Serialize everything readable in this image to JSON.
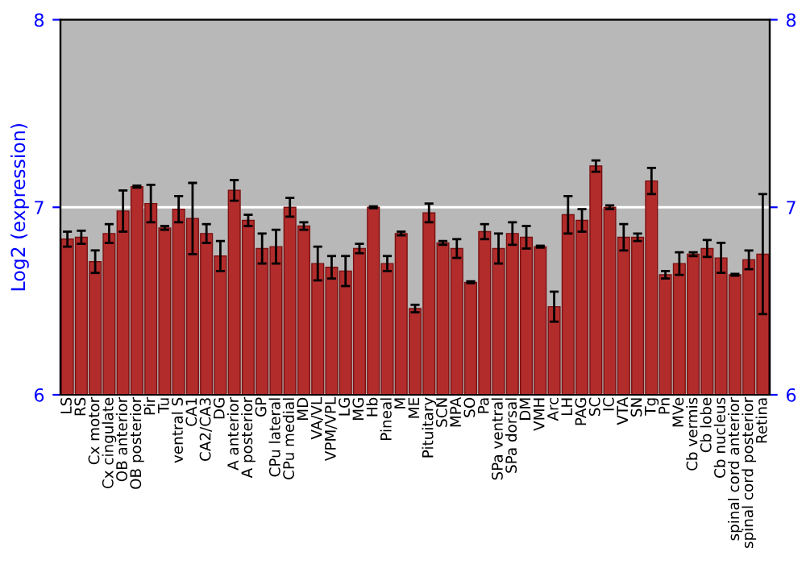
{
  "chart_data": {
    "type": "bar",
    "ylabel": "Log2 (expression)",
    "categories": [
      "LS",
      "RS",
      "Cx motor",
      "Cx cingulate",
      "OB anterior",
      "OB posterior",
      "Pir",
      "Tu",
      "ventral S",
      "CA1",
      "CA2/CA3",
      "DG",
      "A anterior",
      "A posterior",
      "GP",
      "CPu lateral",
      "CPu medial",
      "MD",
      "VA/VL",
      "VPM/VPL",
      "LG",
      "MG",
      "Hb",
      "Pineal",
      "M",
      "ME",
      "Pituitary",
      "SCN",
      "MPA",
      "SO",
      "Pa",
      "SPa ventral",
      "SPa dorsal",
      "DM",
      "VMH",
      "Arc",
      "LH",
      "PAG",
      "SC",
      "IC",
      "VTA",
      "SN",
      "Tg",
      "Pn",
      "MVe",
      "Cb vermis",
      "Cb lobe",
      "Cb nucleus",
      "spinal cord anterior",
      "spinal cord posterior",
      "Retina"
    ],
    "values": [
      6.83,
      6.84,
      6.71,
      6.86,
      6.98,
      7.11,
      7.02,
      6.89,
      6.99,
      6.94,
      6.86,
      6.74,
      7.09,
      6.93,
      6.78,
      6.79,
      7.0,
      6.9,
      6.7,
      6.68,
      6.66,
      6.78,
      7.0,
      6.7,
      6.86,
      6.46,
      6.97,
      6.81,
      6.78,
      6.6,
      6.87,
      6.78,
      6.86,
      6.84,
      6.79,
      6.47,
      6.96,
      6.93,
      7.22,
      7.0,
      6.84,
      6.84,
      7.14,
      6.64,
      6.7,
      6.75,
      6.78,
      6.73,
      6.64,
      6.72,
      6.75
    ],
    "errors": [
      0.04,
      0.035,
      0.06,
      0.05,
      0.11,
      0.005,
      0.1,
      0.01,
      0.07,
      0.19,
      0.05,
      0.08,
      0.055,
      0.03,
      0.08,
      0.09,
      0.05,
      0.02,
      0.09,
      0.06,
      0.08,
      0.025,
      0.005,
      0.04,
      0.01,
      0.02,
      0.05,
      0.01,
      0.05,
      0.005,
      0.04,
      0.08,
      0.06,
      0.06,
      0.005,
      0.08,
      0.1,
      0.06,
      0.03,
      0.01,
      0.07,
      0.02,
      0.07,
      0.02,
      0.06,
      0.01,
      0.045,
      0.08,
      0.005,
      0.05,
      0.32
    ],
    "color": "#b22c2c",
    "ylim": [
      6,
      8
    ],
    "yticks": [
      6,
      7,
      8
    ],
    "y2lim": [
      6,
      8
    ],
    "y2ticks": [
      6,
      7,
      8
    ],
    "grid": "y"
  }
}
